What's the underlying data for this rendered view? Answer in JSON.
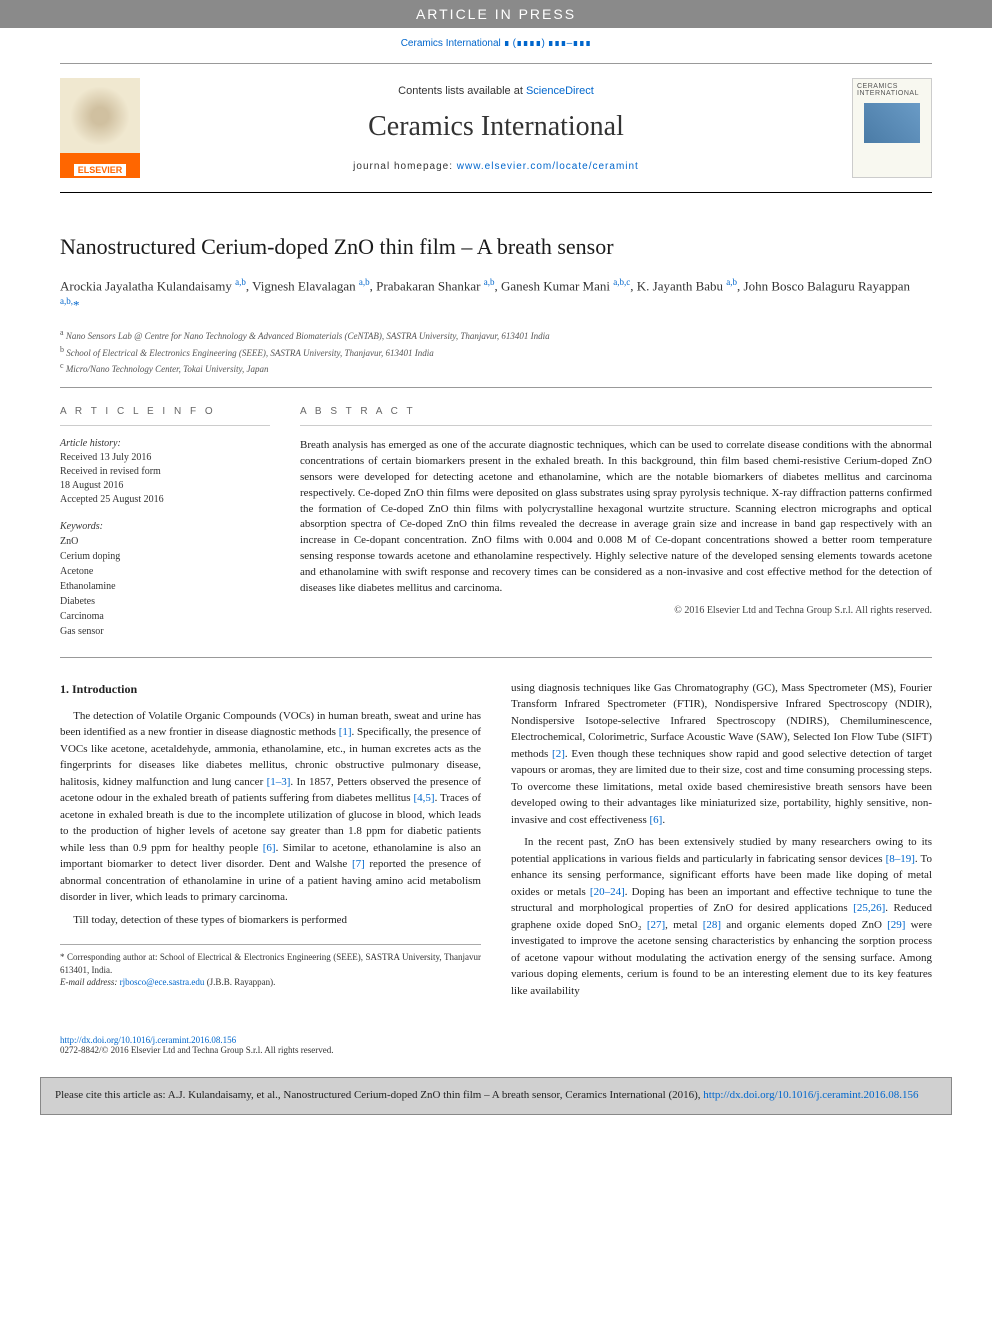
{
  "banner": {
    "text": "ARTICLE IN PRESS"
  },
  "journal_ref": {
    "journal_link": "Ceramics International",
    "vol_placeholder": "∎ (∎∎∎∎) ∎∎∎–∎∎∎"
  },
  "header": {
    "contents_prefix": "Contents lists available at ",
    "contents_link": "ScienceDirect",
    "journal_name": "Ceramics International",
    "homepage_prefix": "journal homepage: ",
    "homepage_url": "www.elsevier.com/locate/ceramint",
    "publisher": "ELSEVIER",
    "cover_title": "CERAMICS INTERNATIONAL"
  },
  "article": {
    "title": "Nanostructured Cerium-doped ZnO thin film – A breath sensor",
    "authors_html": "Arockia Jayalatha Kulandaisamy <sup>a,b</sup>, Vignesh Elavalagan <sup>a,b</sup>, Prabakaran Shankar <sup>a,b</sup>, Ganesh Kumar Mani <sup>a,b,c</sup>, K. Jayanth Babu <sup>a,b</sup>, John Bosco Balaguru Rayappan <sup>a,b,</sup><span class='corr'>*</span>",
    "affiliations": [
      {
        "sup": "a",
        "text": "Nano Sensors Lab @ Centre for Nano Technology & Advanced Biomaterials (CeNTAB), SASTRA University, Thanjavur, 613401 India"
      },
      {
        "sup": "b",
        "text": "School of Electrical & Electronics Engineering (SEEE), SASTRA University, Thanjavur, 613401 India"
      },
      {
        "sup": "c",
        "text": "Micro/Nano Technology Center, Tokai University, Japan"
      }
    ]
  },
  "info": {
    "section_label": "A R T I C L E  I N F O",
    "history_label": "Article history:",
    "history": "Received 13 July 2016\nReceived in revised form\n18 August 2016\nAccepted 25 August 2016",
    "keywords_label": "Keywords:",
    "keywords": [
      "ZnO",
      "Cerium doping",
      "Acetone",
      "Ethanolamine",
      "Diabetes",
      "Carcinoma",
      "Gas sensor"
    ]
  },
  "abstract": {
    "section_label": "A B S T R A C T",
    "text": "Breath analysis has emerged as one of the accurate diagnostic techniques, which can be used to correlate disease conditions with the abnormal concentrations of certain biomarkers present in the exhaled breath. In this background, thin film based chemi-resistive Cerium-doped ZnO sensors were developed for detecting acetone and ethanolamine, which are the notable biomarkers of diabetes mellitus and carcinoma respectively. Ce-doped ZnO thin films were deposited on glass substrates using spray pyrolysis technique. X-ray diffraction patterns confirmed the formation of Ce-doped ZnO thin films with polycrystalline hexagonal wurtzite structure. Scanning electron micrographs and optical absorption spectra of Ce-doped ZnO thin films revealed the decrease in average grain size and increase in band gap respectively with an increase in Ce-dopant concentration. ZnO films with 0.004 and 0.008 M of Ce-dopant concentrations showed a better room temperature sensing response towards acetone and ethanolamine respectively. Highly selective nature of the developed sensing elements towards acetone and ethanolamine with swift response and recovery times can be considered as a non-invasive and cost effective method for the detection of diseases like diabetes mellitus and carcinoma.",
    "copyright": "© 2016 Elsevier Ltd and Techna Group S.r.l. All rights reserved."
  },
  "body": {
    "section_number": "1.",
    "section_title": "Introduction",
    "left_paras": [
      "The detection of Volatile Organic Compounds (VOCs) in human breath, sweat and urine has been identified as a new frontier in disease diagnostic methods [1]. Specifically, the presence of VOCs like acetone, acetaldehyde, ammonia, ethanolamine, etc., in human excretes acts as the fingerprints for diseases like diabetes mellitus, chronic obstructive pulmonary disease, halitosis, kidney malfunction and lung cancer [1–3]. In 1857, Petters observed the presence of acetone odour in the exhaled breath of patients suffering from diabetes mellitus [4,5]. Traces of acetone in exhaled breath is due to the incomplete utilization of glucose in blood, which leads to the production of higher levels of acetone say greater than 1.8 ppm for diabetic patients while less than 0.9 ppm for healthy people [6]. Similar to acetone, ethanolamine is also an important biomarker to detect liver disorder. Dent and Walshe [7] reported the presence of abnormal concentration of ethanolamine in urine of a patient having amino acid metabolism disorder in liver, which leads to primary carcinoma.",
      "Till today, detection of these types of biomarkers is performed"
    ],
    "right_paras": [
      "using diagnosis techniques like Gas Chromatography (GC), Mass Spectrometer (MS), Fourier Transform Infrared Spectrometer (FTIR), Nondispersive Infrared Spectroscopy (NDIR), Nondispersive Isotope-selective Infrared Spectroscopy (NDIRS), Chemiluminescence, Electrochemical, Colorimetric, Surface Acoustic Wave (SAW), Selected Ion Flow Tube (SIFT) methods [2]. Even though these techniques show rapid and good selective detection of target vapours or aromas, they are limited due to their size, cost and time consuming processing steps. To overcome these limitations, metal oxide based chemiresistive breath sensors have been developed owing to their advantages like miniaturized size, portability, highly sensitive, non-invasive and cost effectiveness [6].",
      "In the recent past, ZnO has been extensively studied by many researchers owing to its potential applications in various fields and particularly in fabricating sensor devices [8–19]. To enhance its sensing performance, significant efforts have been made like doping of metal oxides or metals [20–24]. Doping has been an important and effective technique to tune the structural and morphological properties of ZnO for desired applications [25,26]. Reduced graphene oxide doped SnO₂ [27], metal [28] and organic elements doped ZnO [29] were investigated to improve the acetone sensing characteristics by enhancing the sorption process of acetone vapour without modulating the activation energy of the sensing surface. Among various doping elements, cerium is found to be an interesting element due to its key features like availability"
    ]
  },
  "footnotes": {
    "corr": "* Corresponding author at: School of Electrical & Electronics Engineering (SEEE), SASTRA University, Thanjavur 613401, India.",
    "email_label": "E-mail address: ",
    "email": "rjbosco@ece.sastra.edu",
    "email_owner": " (J.B.B. Rayappan)."
  },
  "doi": {
    "url": "http://dx.doi.org/10.1016/j.ceramint.2016.08.156",
    "issn_line": "0272-8842/© 2016 Elsevier Ltd and Techna Group S.r.l. All rights reserved."
  },
  "citebox": {
    "prefix": "Please cite this article as: A.J. Kulandaisamy, et al., Nanostructured Cerium-doped ZnO thin film – A breath sensor, Ceramics International (2016), ",
    "url": "http://dx.doi.org/10.1016/j.ceramint.2016.08.156"
  },
  "ref_links": {
    "r1": "[1]",
    "r1_3": "[1–3]",
    "r4_5": "[4,5]",
    "r6a": "[6]",
    "r7": "[7]",
    "r2": "[2]",
    "r6b": "[6]",
    "r8_19": "[8–19]",
    "r20_24": "[20–24]",
    "r25_26": "[25,26]",
    "r27": "[27]",
    "r28": "[28]",
    "r29": "[29]"
  },
  "style": {
    "link_color": "#0066cc",
    "banner_bg": "#8a8a8a",
    "citebox_bg": "#d0d0d0",
    "page_bg": "#ffffff",
    "body_font_size_pt": 11,
    "title_font_size_pt": 22,
    "journal_name_font_size_pt": 28
  }
}
